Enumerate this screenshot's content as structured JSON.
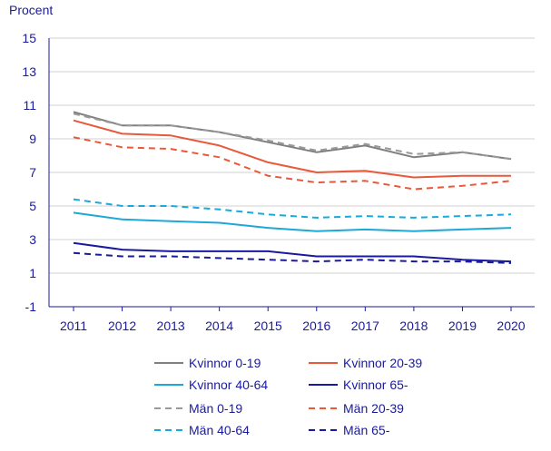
{
  "chart_data": {
    "type": "line",
    "title": "",
    "ylabel": "Procent",
    "xlabel": "",
    "ylim": [
      -1,
      15
    ],
    "yticks": [
      -1,
      1,
      3,
      5,
      7,
      9,
      11,
      13,
      15
    ],
    "x": [
      "2011",
      "2012",
      "2013",
      "2014",
      "2015",
      "2016",
      "2017",
      "2018",
      "2019",
      "2020"
    ],
    "grid": "horizontal",
    "legend_position": "bottom",
    "series": [
      {
        "name": "Kvinnor 0-19",
        "color": "#7f7f7f",
        "dash": "solid",
        "values": [
          10.6,
          9.8,
          9.8,
          9.4,
          8.8,
          8.2,
          8.6,
          7.9,
          8.2,
          7.8
        ]
      },
      {
        "name": "Kvinnor 20-39",
        "color": "#e8583a",
        "dash": "solid",
        "values": [
          10.1,
          9.3,
          9.2,
          8.6,
          7.6,
          7.0,
          7.1,
          6.7,
          6.8,
          6.8
        ]
      },
      {
        "name": "Kvinnor 40-64",
        "color": "#1ca8d8",
        "dash": "solid",
        "values": [
          4.6,
          4.2,
          4.1,
          4.0,
          3.7,
          3.5,
          3.6,
          3.5,
          3.6,
          3.7
        ]
      },
      {
        "name": "Kvinnor 65-",
        "color": "#1a1a9e",
        "dash": "solid",
        "values": [
          2.8,
          2.4,
          2.3,
          2.3,
          2.3,
          2.0,
          2.0,
          2.0,
          1.8,
          1.7
        ]
      },
      {
        "name": "Män 0-19",
        "color": "#999999",
        "dash": "dashed",
        "values": [
          10.5,
          9.8,
          9.8,
          9.4,
          8.9,
          8.3,
          8.7,
          8.1,
          8.2,
          7.8
        ]
      },
      {
        "name": "Män 20-39",
        "color": "#e8583a",
        "dash": "dashed",
        "values": [
          9.1,
          8.5,
          8.4,
          7.9,
          6.8,
          6.4,
          6.5,
          6.0,
          6.2,
          6.5
        ]
      },
      {
        "name": "Män 40-64",
        "color": "#1ca8d8",
        "dash": "dashed",
        "values": [
          5.4,
          5.0,
          5.0,
          4.8,
          4.5,
          4.3,
          4.4,
          4.3,
          4.4,
          4.5
        ]
      },
      {
        "name": "Män 65-",
        "color": "#1a1a9e",
        "dash": "dashed",
        "values": [
          2.2,
          2.0,
          2.0,
          1.9,
          1.8,
          1.7,
          1.8,
          1.7,
          1.7,
          1.6
        ]
      }
    ]
  }
}
